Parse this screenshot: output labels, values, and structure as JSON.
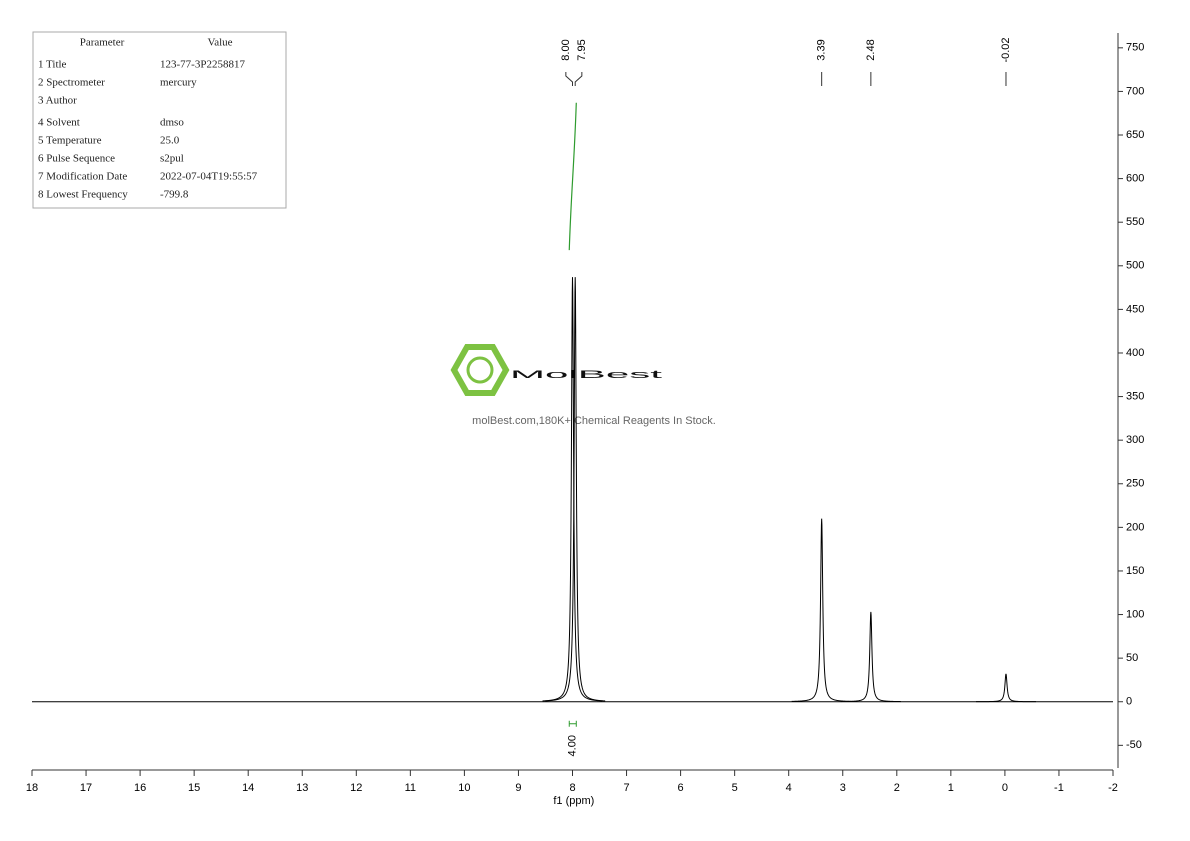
{
  "parameters": {
    "header": [
      "Parameter",
      "Value"
    ],
    "rows": [
      {
        "name": "1 Title",
        "value": "123-77-3P2258817"
      },
      {
        "name": "2 Spectrometer",
        "value": "mercury"
      },
      {
        "name": "3 Author"
      },
      {
        "name": "4 Solvent",
        "value": "dmso"
      },
      {
        "name": "5 Temperature",
        "value": "25.0"
      },
      {
        "name": "6 Pulse Sequence",
        "value": "s2pul"
      },
      {
        "name": "7 Modification Date",
        "value": "2022-07-04T19:55:57"
      },
      {
        "name": "8 Lowest Frequency",
        "value": "-799.8"
      }
    ]
  },
  "watermark": {
    "brand": "MolBest",
    "tagline": "molBest.com,180K+ Chemical Reagents In Stock."
  },
  "chart_data": {
    "type": "nmr",
    "x_label": "f1 (ppm)",
    "xlim": [
      18,
      -2
    ],
    "xticks": [
      18,
      17,
      16,
      15,
      14,
      13,
      12,
      11,
      10,
      9,
      8,
      7,
      6,
      5,
      4,
      3,
      2,
      1,
      0,
      -1,
      -2
    ],
    "ylim": [
      -76,
      767
    ],
    "yticks": [
      -50,
      0,
      50,
      100,
      150,
      200,
      250,
      300,
      350,
      400,
      450,
      500,
      550,
      600,
      650,
      700,
      750
    ],
    "color": "#000000",
    "peaks": {
      "x": [
        8.0,
        7.95,
        3.39,
        2.48,
        -0.02
      ],
      "values": [
        487,
        487,
        210,
        103,
        32
      ],
      "x_labels": [
        "8.00",
        "7.95",
        "3.39",
        "2.48",
        "-0.02"
      ]
    },
    "integrals": [
      {
        "x": [
          8.06,
          7.93
        ],
        "values": [
          518,
          687
        ],
        "value": 4,
        "label": "4.00",
        "color": "#2e9b2e"
      }
    ]
  }
}
